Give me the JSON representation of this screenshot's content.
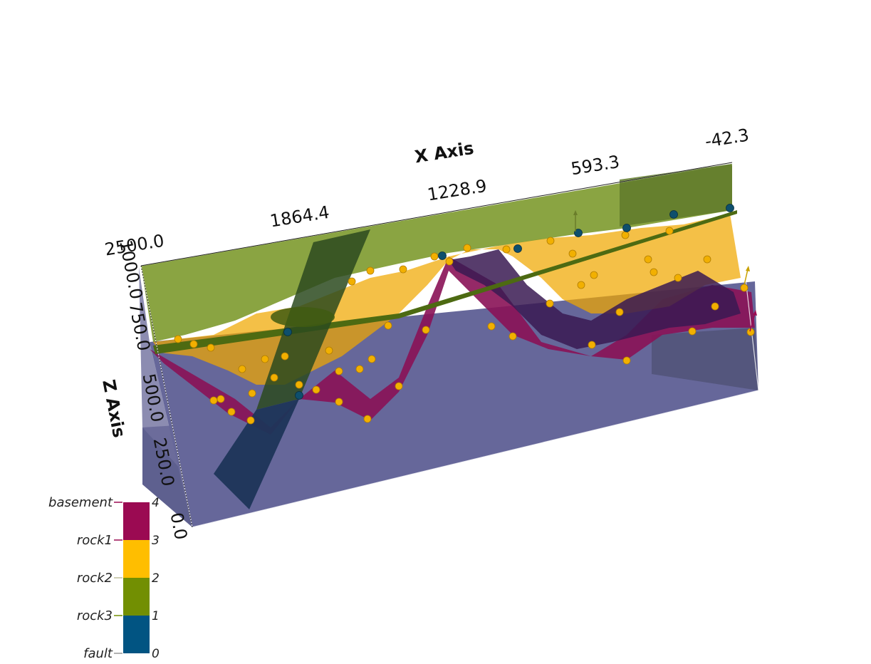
{
  "chart_data": {
    "type": "3d-geological-model",
    "x_axis": {
      "title": "X Axis",
      "ticks": [
        "2500.0",
        "1864.4",
        "1228.9",
        "593.3",
        "-42.3"
      ]
    },
    "z_axis": {
      "title": "Z Axis",
      "ticks": [
        "1000.0",
        "750.0",
        "500.0",
        "250.0",
        "0.0"
      ]
    },
    "scalar_bar": {
      "entries": [
        {
          "label": "basement",
          "value": "4",
          "color": "#9b0a52"
        },
        {
          "label": "rock1",
          "value": "3",
          "color": "#ffbe00"
        },
        {
          "label": "rock2",
          "value": "2",
          "color": "#728f02"
        },
        {
          "label": "rock3",
          "value": "1",
          "color": "#0d5c8a"
        },
        {
          "label": "fault",
          "value": "0",
          "color": "#015482"
        }
      ],
      "bottom_tick": "0"
    },
    "colors": {
      "basement": "#9b0a52",
      "rock1": "#ffbe00",
      "rock2": "#728f02",
      "rock3": "#1a5a82",
      "fault": "#1e3a63",
      "box_fill": "#5c5f8e"
    },
    "points": {
      "rock1_surface_points": 60,
      "fault_surface_points": 12
    }
  }
}
